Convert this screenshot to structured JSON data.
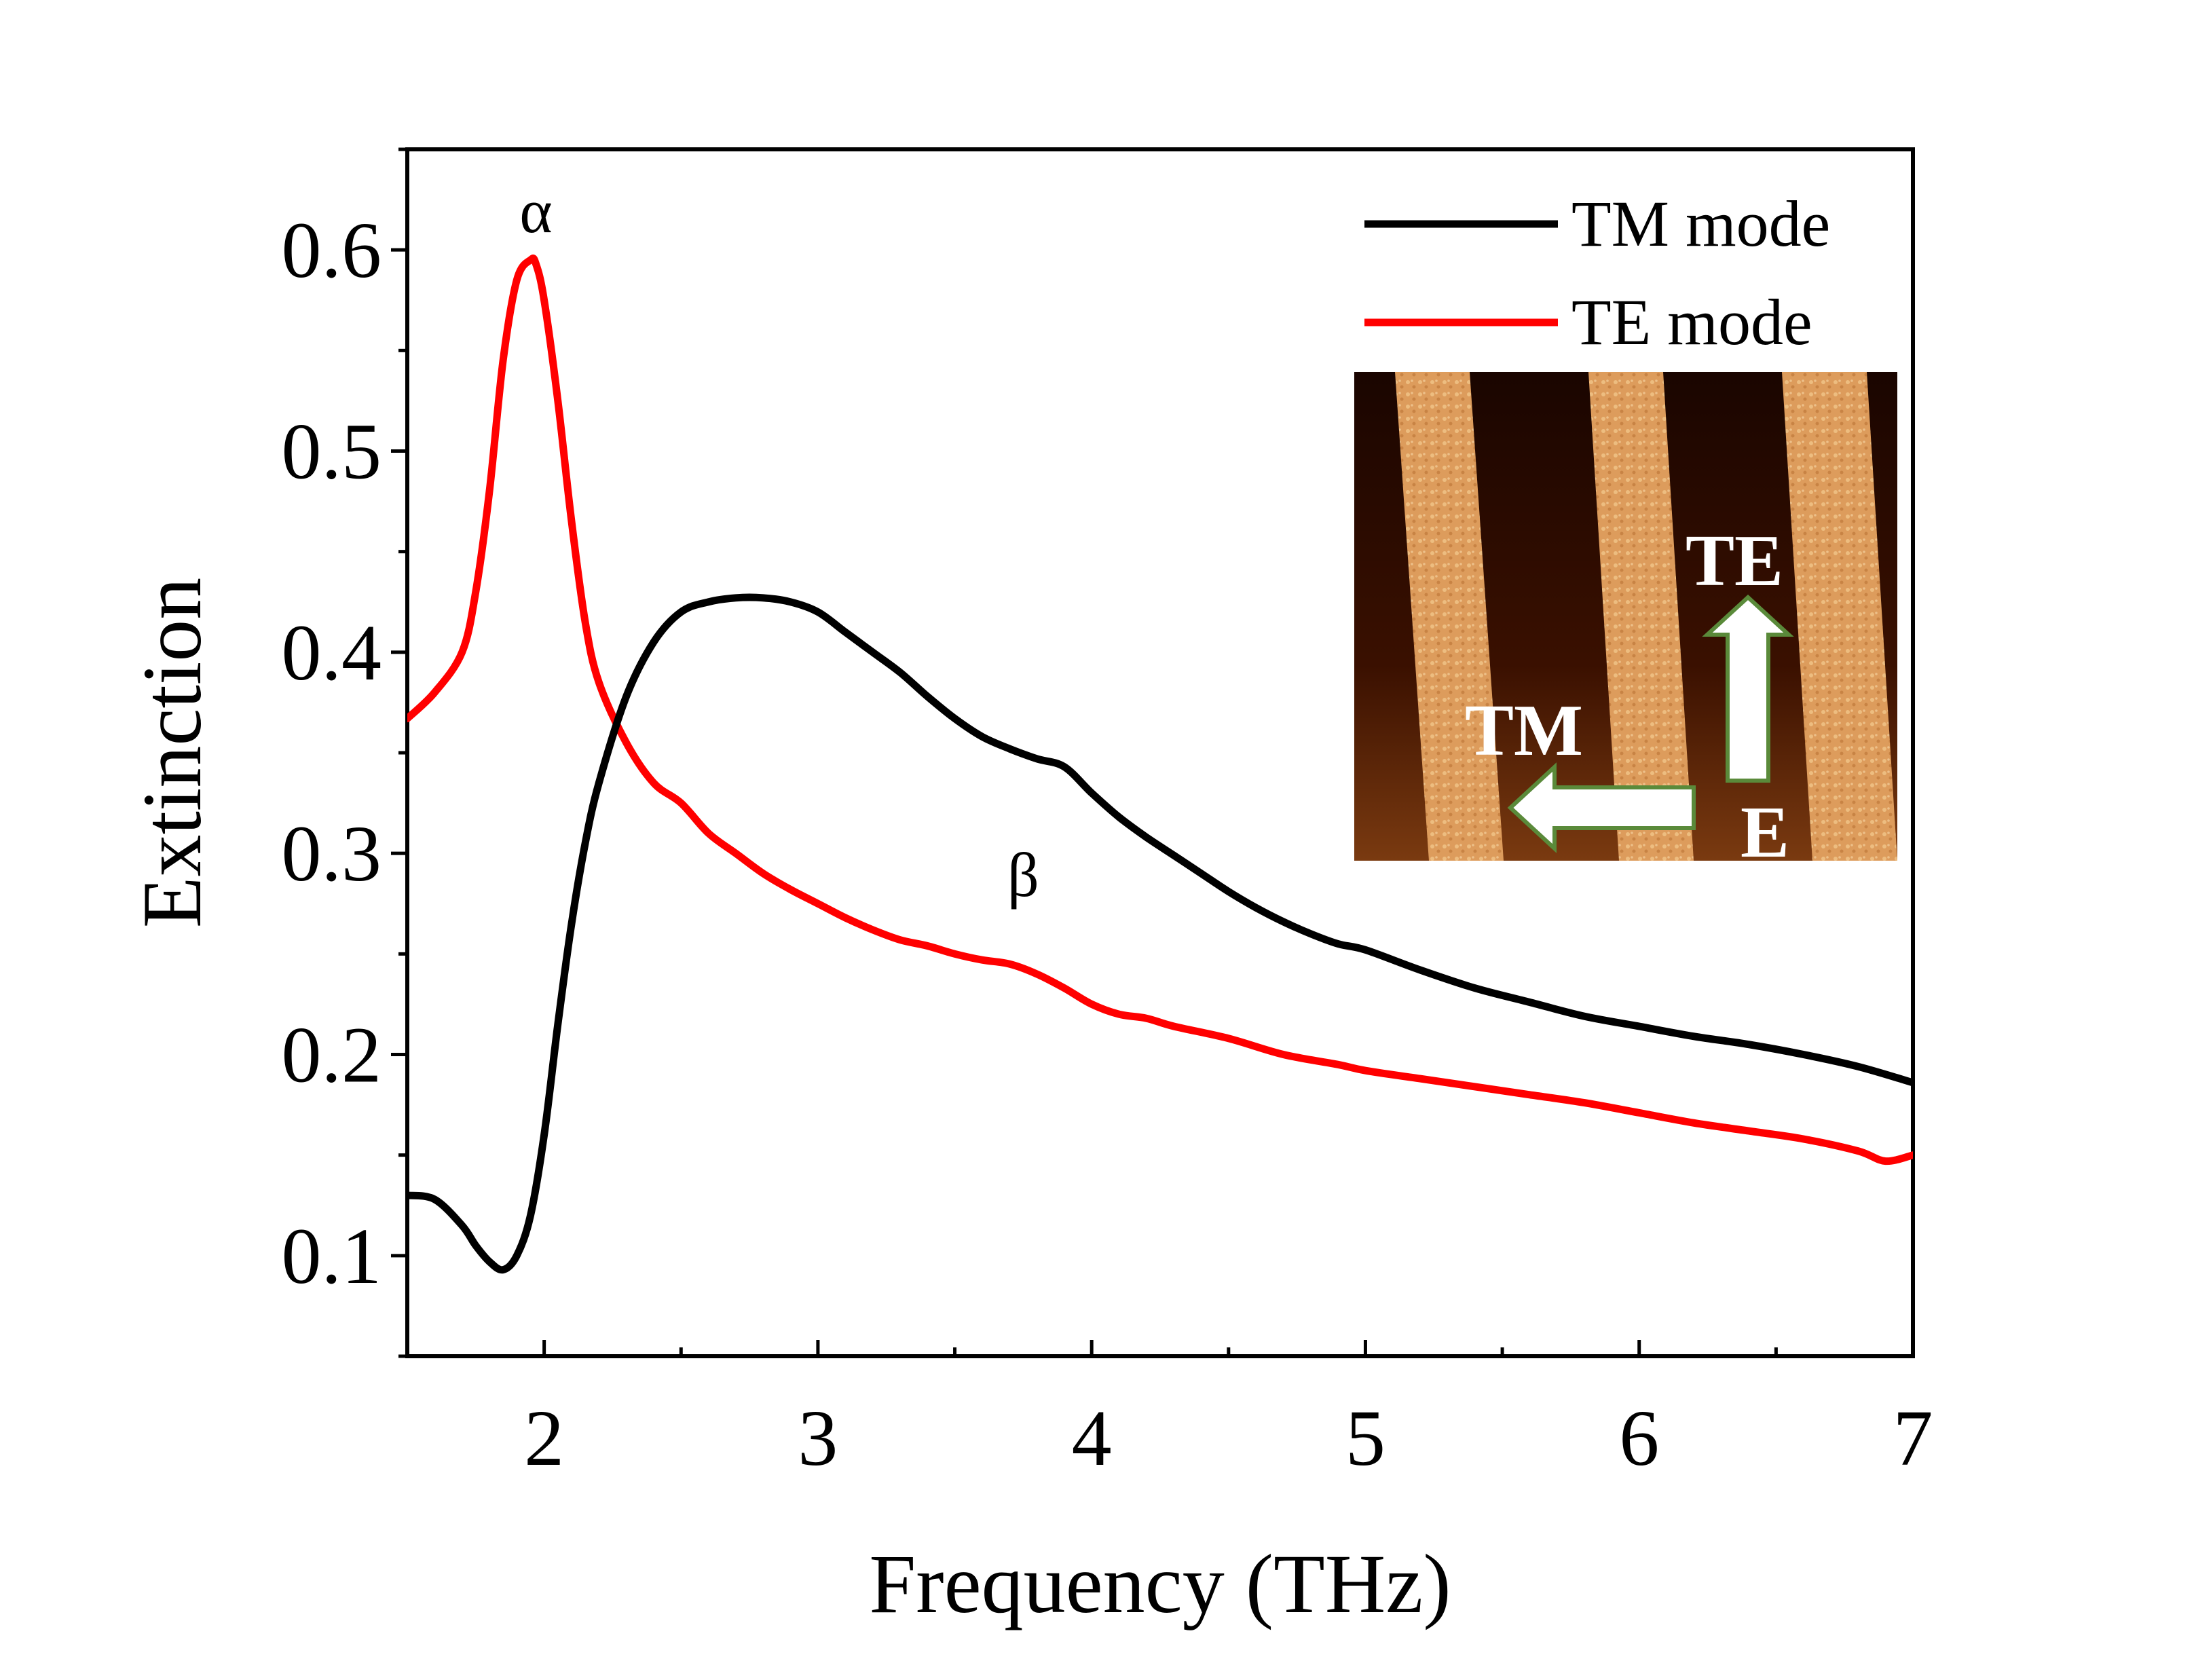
{
  "chart_data": {
    "type": "line",
    "title": "",
    "xlabel": "Frequency  (THz)",
    "ylabel": "Extinction",
    "xlim": [
      1.5,
      7
    ],
    "ylim": [
      0.05,
      0.65
    ],
    "xticks": [
      2,
      3,
      4,
      5,
      6,
      7
    ],
    "yticks": [
      0.1,
      0.2,
      0.3,
      0.4,
      0.5,
      0.6
    ],
    "xtick_labels": [
      "2",
      "3",
      "4",
      "5",
      "6",
      "7"
    ],
    "ytick_labels": [
      "0.1",
      "0.2",
      "0.3",
      "0.4",
      "0.5",
      "0.6"
    ],
    "grid": false,
    "legend_position": "top-right",
    "series": [
      {
        "name": "TM mode",
        "color": "#000000",
        "x": [
          1.5,
          1.6,
          1.7,
          1.75,
          1.8,
          1.85,
          1.9,
          1.95,
          2.0,
          2.05,
          2.1,
          2.15,
          2.2,
          2.3,
          2.4,
          2.5,
          2.6,
          2.7,
          2.8,
          2.9,
          3.0,
          3.1,
          3.2,
          3.3,
          3.4,
          3.5,
          3.6,
          3.7,
          3.8,
          3.9,
          4.0,
          4.1,
          4.2,
          4.3,
          4.4,
          4.5,
          4.6,
          4.7,
          4.8,
          4.9,
          5.0,
          5.2,
          5.4,
          5.6,
          5.8,
          6.0,
          6.2,
          6.4,
          6.6,
          6.8,
          7.0
        ],
        "values": [
          0.13,
          0.128,
          0.115,
          0.105,
          0.097,
          0.093,
          0.1,
          0.12,
          0.16,
          0.215,
          0.265,
          0.305,
          0.335,
          0.378,
          0.405,
          0.42,
          0.425,
          0.427,
          0.427,
          0.425,
          0.42,
          0.41,
          0.4,
          0.39,
          0.378,
          0.367,
          0.358,
          0.352,
          0.347,
          0.343,
          0.33,
          0.318,
          0.308,
          0.299,
          0.29,
          0.281,
          0.273,
          0.266,
          0.26,
          0.255,
          0.252,
          0.242,
          0.233,
          0.226,
          0.219,
          0.214,
          0.209,
          0.205,
          0.2,
          0.194,
          0.186
        ]
      },
      {
        "name": "TE mode",
        "color": "#ff0000",
        "x": [
          1.5,
          1.6,
          1.7,
          1.75,
          1.8,
          1.85,
          1.9,
          1.95,
          1.97,
          2.0,
          2.05,
          2.1,
          2.15,
          2.2,
          2.3,
          2.4,
          2.5,
          2.6,
          2.7,
          2.8,
          2.9,
          3.0,
          3.1,
          3.2,
          3.3,
          3.4,
          3.5,
          3.6,
          3.7,
          3.8,
          3.9,
          4.0,
          4.1,
          4.2,
          4.3,
          4.5,
          4.7,
          4.9,
          5.0,
          5.2,
          5.4,
          5.6,
          5.8,
          6.0,
          6.2,
          6.4,
          6.6,
          6.8,
          6.9,
          7.0
        ],
        "values": [
          0.367,
          0.38,
          0.4,
          0.43,
          0.48,
          0.545,
          0.585,
          0.595,
          0.593,
          0.575,
          0.525,
          0.465,
          0.415,
          0.385,
          0.355,
          0.335,
          0.325,
          0.31,
          0.3,
          0.29,
          0.282,
          0.275,
          0.268,
          0.262,
          0.257,
          0.254,
          0.25,
          0.247,
          0.245,
          0.24,
          0.233,
          0.225,
          0.22,
          0.218,
          0.214,
          0.208,
          0.2,
          0.195,
          0.192,
          0.188,
          0.184,
          0.18,
          0.176,
          0.171,
          0.166,
          0.162,
          0.158,
          0.152,
          0.147,
          0.15
        ]
      }
    ],
    "annotations": [
      {
        "text": "α",
        "x": 1.97,
        "y": 0.602
      },
      {
        "text": "β",
        "x": 3.75,
        "y": 0.272
      }
    ],
    "inset_image": {
      "description_labels": [
        "TE",
        "TM",
        "E"
      ],
      "stripe_color_light": "#e0a060",
      "stripe_color_dark": "#2a0a00",
      "arrow_color": "#ffffff",
      "arrow_outline": "#5a8a3a"
    }
  }
}
